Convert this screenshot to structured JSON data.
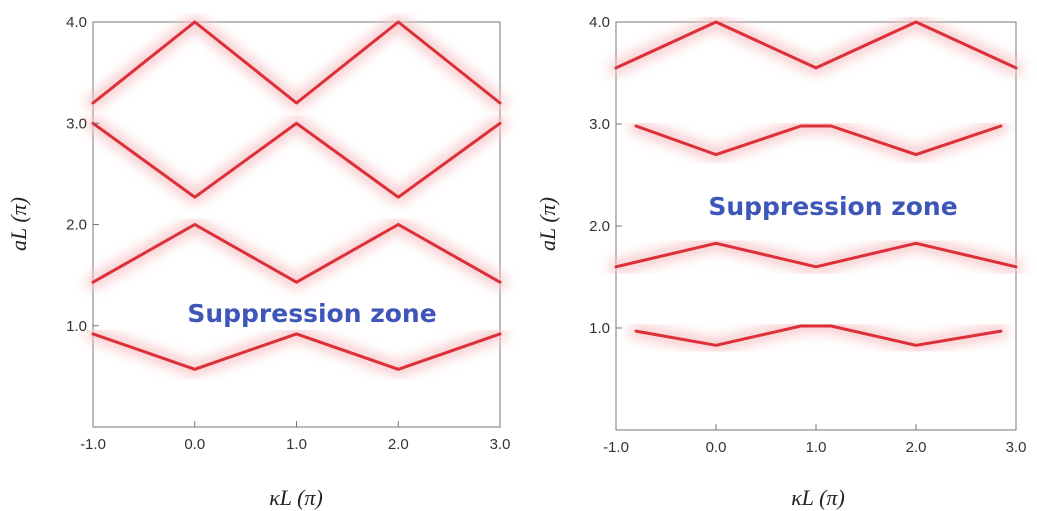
{
  "colors": {
    "band": "#dc2f37",
    "band_glow": "#f7c6c9",
    "annotation": "#3d56b8",
    "frame": "#777777",
    "background": "#ffffff"
  },
  "chart_data": [
    {
      "type": "line",
      "xlabel": "κL (π)",
      "ylabel": "aL (π)",
      "xlim": [
        -1.0,
        3.0
      ],
      "ylim": [
        0.0,
        4.0
      ],
      "x_ticks": [
        "-1.0",
        "0.0",
        "1.0",
        "2.0",
        "3.0"
      ],
      "y_ticks": [
        "1.0",
        "2.0",
        "3.0",
        "4.0"
      ],
      "annotation": "Suppression zone",
      "series": [
        {
          "x": [
            -1.0,
            0.0,
            1.0,
            2.0,
            3.0
          ],
          "y": [
            0.92,
            0.57,
            0.92,
            0.57,
            0.92
          ]
        },
        {
          "x": [
            -1.0,
            0.0,
            1.0,
            2.0,
            3.0
          ],
          "y": [
            1.43,
            2.0,
            1.43,
            2.0,
            1.43
          ]
        },
        {
          "x": [
            -1.0,
            0.0,
            1.0,
            2.0,
            3.0
          ],
          "y": [
            3.0,
            2.27,
            3.0,
            2.27,
            3.0
          ]
        },
        {
          "x": [
            -1.0,
            0.0,
            1.0,
            2.0,
            3.0
          ],
          "y": [
            3.2,
            4.0,
            3.2,
            4.0,
            3.2
          ]
        }
      ]
    },
    {
      "type": "line",
      "xlabel": "κL (π)",
      "ylabel": "aL (π)",
      "xlim": [
        -1.0,
        3.0
      ],
      "ylim": [
        0.0,
        4.0
      ],
      "x_ticks": [
        "-1.0",
        "0.0",
        "1.0",
        "2.0",
        "3.0"
      ],
      "y_ticks": [
        "1.0",
        "2.0",
        "3.0",
        "4.0"
      ],
      "annotation": "Suppression zone",
      "series": [
        {
          "x": [
            -0.8,
            0.0,
            0.85,
            1.15,
            2.0,
            2.85
          ],
          "y": [
            0.97,
            0.83,
            1.02,
            1.02,
            0.83,
            0.97
          ]
        },
        {
          "x": [
            -1.0,
            0.0,
            1.0,
            2.0,
            3.0
          ],
          "y": [
            1.6,
            1.83,
            1.6,
            1.83,
            1.6
          ]
        },
        {
          "x": [
            -0.8,
            0.0,
            0.85,
            1.15,
            2.0,
            2.85
          ],
          "y": [
            2.98,
            2.7,
            2.98,
            2.98,
            2.7,
            2.98
          ]
        },
        {
          "x": [
            -1.0,
            0.0,
            1.0,
            2.0,
            3.0
          ],
          "y": [
            3.55,
            4.0,
            3.55,
            4.0,
            3.55
          ]
        }
      ]
    }
  ]
}
